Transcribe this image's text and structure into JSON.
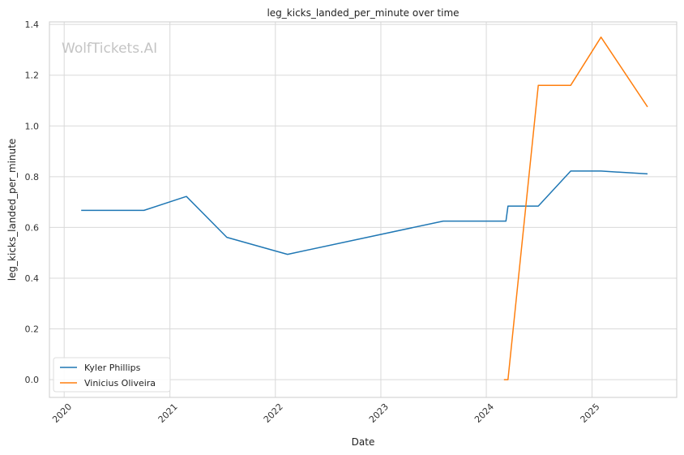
{
  "chart_data": {
    "type": "line",
    "title": "leg_kicks_landed_per_minute over time",
    "xlabel": "Date",
    "ylabel": "leg_kicks_landed_per_minute",
    "watermark": "WolfTickets.AI",
    "x_ticks": [
      "2020",
      "2021",
      "2022",
      "2023",
      "2024",
      "2025"
    ],
    "y_ticks": [
      "0.0",
      "0.2",
      "0.4",
      "0.6",
      "0.8",
      "1.0",
      "1.2",
      "1.4"
    ],
    "xlim": [
      "2019-11-11",
      "2025-10-21"
    ],
    "ylim": [
      -0.07,
      1.41
    ],
    "grid": true,
    "legend_position": "lower-left",
    "series": [
      {
        "name": "Kyler Phillips",
        "color": "#1f77b4",
        "points": [
          {
            "x": "2020-02-29",
            "y": 0.667
          },
          {
            "x": "2020-10-03",
            "y": 0.667
          },
          {
            "x": "2021-02-27",
            "y": 0.722
          },
          {
            "x": "2021-07-17",
            "y": 0.561
          },
          {
            "x": "2022-02-12",
            "y": 0.494
          },
          {
            "x": "2023-08-05",
            "y": 0.625
          },
          {
            "x": "2024-03-09",
            "y": 0.625
          },
          {
            "x": "2024-03-16",
            "y": 0.684
          },
          {
            "x": "2024-06-29",
            "y": 0.684
          },
          {
            "x": "2024-10-19",
            "y": 0.822
          },
          {
            "x": "2025-02-01",
            "y": 0.822
          },
          {
            "x": "2025-07-12",
            "y": 0.811
          }
        ]
      },
      {
        "name": "Vinicius Oliveira",
        "color": "#ff7f0e",
        "points": [
          {
            "x": "2024-03-02",
            "y": 0.0
          },
          {
            "x": "2024-03-16",
            "y": 0.0
          },
          {
            "x": "2024-06-29",
            "y": 1.16
          },
          {
            "x": "2024-10-19",
            "y": 1.16
          },
          {
            "x": "2025-02-01",
            "y": 1.35
          },
          {
            "x": "2025-07-12",
            "y": 1.075
          }
        ]
      }
    ]
  }
}
